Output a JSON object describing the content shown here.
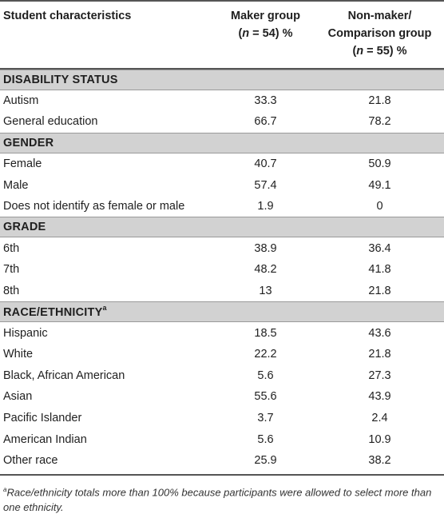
{
  "headers": {
    "col1": "Student characteristics",
    "col2_line1": "Maker group",
    "col2_line2_pre": "(",
    "col2_line2_n": "n",
    "col2_line2_post": " = 54) %",
    "col3_line1": "Non-maker/",
    "col3_line2": "Comparison group",
    "col3_line3_pre": "(",
    "col3_line3_n": "n",
    "col3_line3_post": " = 55) %"
  },
  "sections": [
    {
      "title": "DISABILITY STATUS",
      "sup": "",
      "rows": [
        {
          "label": "Autism",
          "maker": "33.3",
          "nonmaker": "21.8"
        },
        {
          "label": "General education",
          "maker": "66.7",
          "nonmaker": "78.2"
        }
      ]
    },
    {
      "title": "GENDER",
      "sup": "",
      "rows": [
        {
          "label": "Female",
          "maker": "40.7",
          "nonmaker": "50.9"
        },
        {
          "label": "Male",
          "maker": "57.4",
          "nonmaker": "49.1"
        },
        {
          "label": "Does not identify as female or male",
          "maker": "1.9",
          "nonmaker": "0"
        }
      ]
    },
    {
      "title": "GRADE",
      "sup": "",
      "rows": [
        {
          "label": "6th",
          "maker": "38.9",
          "nonmaker": "36.4"
        },
        {
          "label": "7th",
          "maker": "48.2",
          "nonmaker": "41.8"
        },
        {
          "label": "8th",
          "maker": "13",
          "nonmaker": "21.8"
        }
      ]
    },
    {
      "title": "RACE/ETHNICITY",
      "sup": "a",
      "rows": [
        {
          "label": "Hispanic",
          "maker": "18.5",
          "nonmaker": "43.6"
        },
        {
          "label": "White",
          "maker": "22.2",
          "nonmaker": "21.8"
        },
        {
          "label": "Black, African American",
          "maker": "5.6",
          "nonmaker": "27.3"
        },
        {
          "label": "Asian",
          "maker": "55.6",
          "nonmaker": "43.9"
        },
        {
          "label": "Pacific Islander",
          "maker": "3.7",
          "nonmaker": "2.4"
        },
        {
          "label": "American Indian",
          "maker": "5.6",
          "nonmaker": "10.9"
        },
        {
          "label": "Other race",
          "maker": "25.9",
          "nonmaker": "38.2"
        }
      ]
    }
  ],
  "footnote": {
    "marker": "a",
    "text": "Race/ethnicity totals more than 100% because participants were allowed to select more than one ethnicity."
  }
}
